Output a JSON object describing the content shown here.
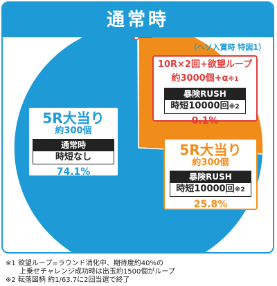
{
  "header": {
    "title": "通常時"
  },
  "subnote": "（ヘソ入賞時 特図1）",
  "colors": {
    "blue": "#1e9bd7",
    "orange": "#f08d1a",
    "red": "#e03b3b",
    "dark": "#222222"
  },
  "chart_data": {
    "type": "pie",
    "slices": [
      {
        "value": 74.1,
        "color": "#1e9bd7"
      },
      {
        "value": 25.8,
        "color": "#f08d1a"
      },
      {
        "value": 0.1,
        "color": "#e03b3b"
      }
    ]
  },
  "segments": {
    "small": {
      "line1": "10R×2回+欲望ループ",
      "line2": "約3000個+α",
      "line2_mark": "※1",
      "tag_top": "暴険RUSH",
      "tag_bottom": "時短10000回",
      "tag_mark": "※2",
      "percent": "0.1%"
    },
    "left": {
      "big": "5R大当り",
      "sub": "約300個",
      "tag_top": "通常時",
      "tag_bottom": "時短なし",
      "percent": "74.1%"
    },
    "right": {
      "big": "5R大当り",
      "sub": "約300個",
      "tag_top": "暴険RUSH",
      "tag_bottom": "時短10000回",
      "tag_mark": "※2",
      "percent": "25.8%"
    }
  },
  "notes": [
    {
      "mark": "※1",
      "text": "欲望ループ=ラウンド消化中、期待度約40%の"
    },
    {
      "mark": "",
      "text": "上乗せチャレンジ成功時は出玉約1500個がループ"
    },
    {
      "mark": "※2",
      "text": "転落図柄 約1/63.7に2回当選で終了"
    }
  ]
}
